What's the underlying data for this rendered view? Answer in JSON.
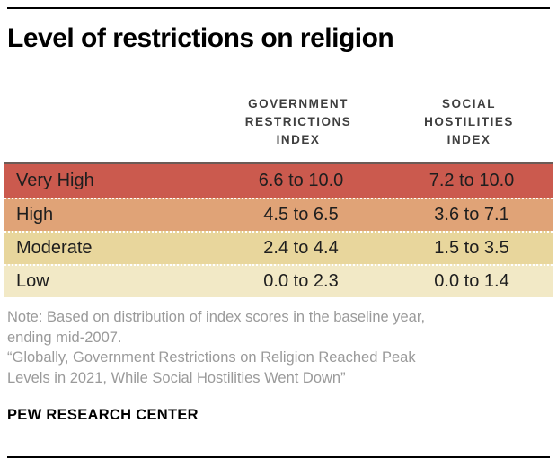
{
  "title": "Level of restrictions on religion",
  "table": {
    "col_headers": [
      "GOVERNMENT\nRESTRICTIONS\nINDEX",
      "SOCIAL\nHOSTILITIES\nINDEX"
    ],
    "rows": [
      {
        "label": "Very High",
        "gri": "6.6 to 10.0",
        "shi": "7.2 to 10.0"
      },
      {
        "label": "High",
        "gri": "4.5 to 6.5",
        "shi": "3.6 to 7.1"
      },
      {
        "label": "Moderate",
        "gri": "2.4 to 4.4",
        "shi": "1.5 to 3.5"
      },
      {
        "label": "Low",
        "gri": "0.0 to 2.3",
        "shi": "0.0 to 1.4"
      }
    ],
    "row_colors": [
      "#cb5a4e",
      "#e0a377",
      "#e8d69c",
      "#f2e9c6"
    ]
  },
  "note": {
    "lines": [
      "Note: Based on distribution of index scores in the baseline year,",
      "ending mid-2007."
    ],
    "quote_lines": [
      "“Globally, Government Restrictions on Religion Reached Peak",
      "Levels in 2021, While Social Hostilities Went Down”"
    ]
  },
  "footer": {
    "source": "PEW RESEARCH CENTER"
  },
  "colors": {
    "table_top_border": "#6b5b56",
    "rule": "#000000",
    "note_text": "#9a9a9a",
    "header_text": "#3f3f3f"
  },
  "chart_data": {
    "type": "table",
    "title": "Level of restrictions on religion",
    "columns": [
      "Level",
      "Government Restrictions Index",
      "Social Hostilities Index"
    ],
    "rows": [
      [
        "Very High",
        "6.6 to 10.0",
        "7.2 to 10.0"
      ],
      [
        "High",
        "4.5 to 6.5",
        "3.6 to 7.1"
      ],
      [
        "Moderate",
        "2.4 to 4.4",
        "1.5 to 3.5"
      ],
      [
        "Low",
        "0.0 to 2.3",
        "0.0 to 1.4"
      ]
    ],
    "row_colors": [
      "#cb5a4e",
      "#e0a377",
      "#e8d69c",
      "#f2e9c6"
    ],
    "note": "Note: Based on distribution of index scores in the baseline year, ending mid-2007.",
    "report_title": "“Globally, Government Restrictions on Religion Reached Peak Levels in 2021, While Social Hostilities Went Down”",
    "source": "PEW RESEARCH CENTER"
  }
}
